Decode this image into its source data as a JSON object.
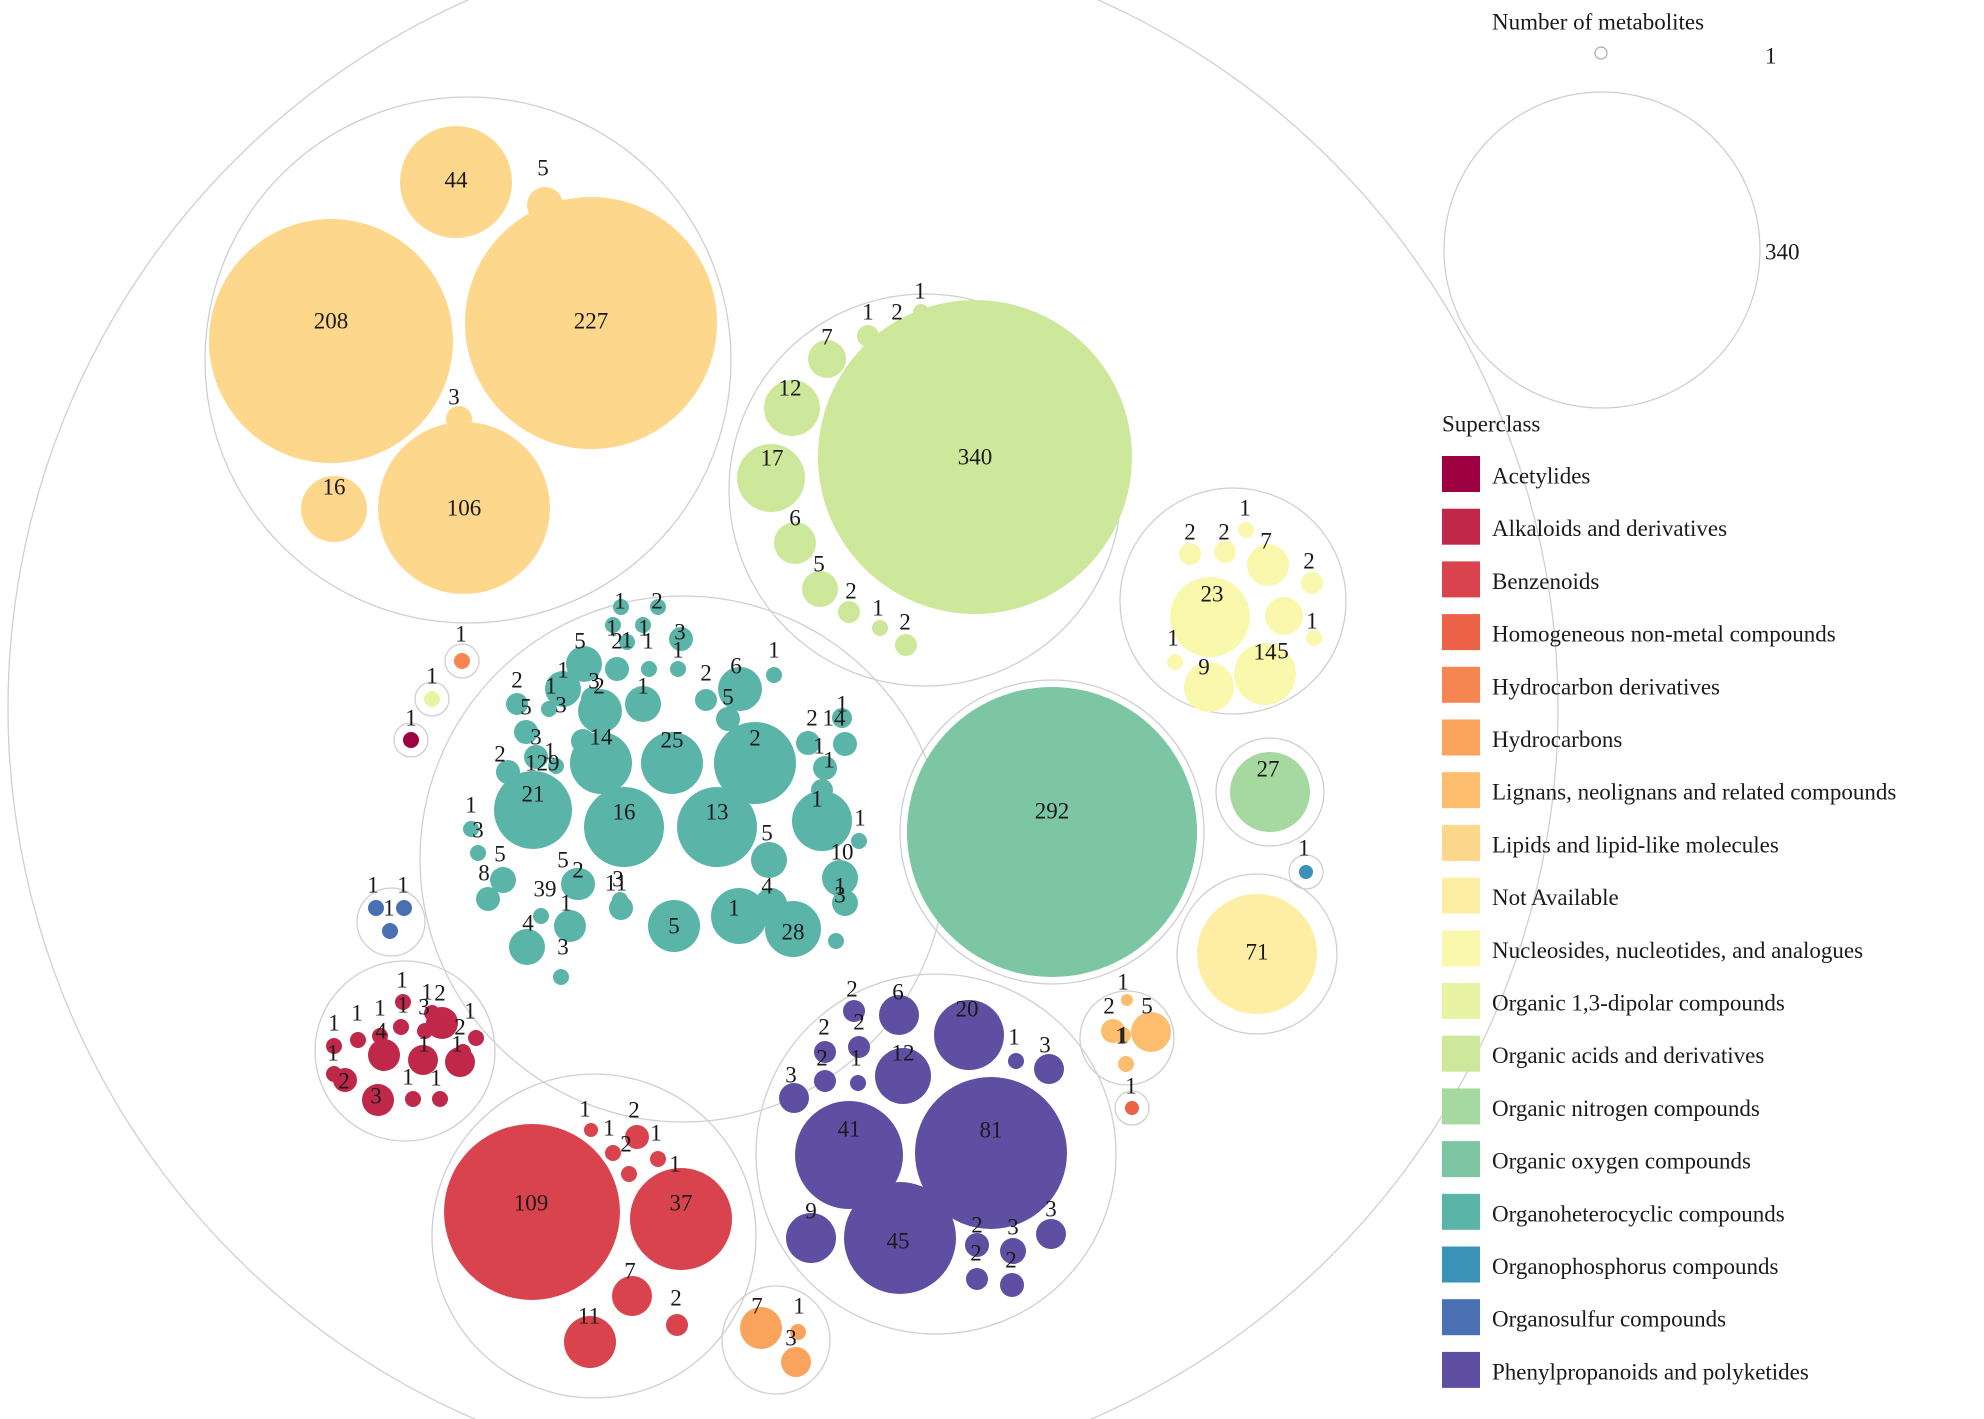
{
  "chart_data": {
    "type": "packed-bubble",
    "title": "",
    "size_legend": {
      "title": "Number of metabolites",
      "min": 1,
      "max": 340
    },
    "color_legend_title": "Superclass",
    "superclasses": [
      {
        "name": "Acetylides",
        "color": "#9e0142"
      },
      {
        "name": "Alkaloids and derivatives",
        "color": "#c0284a"
      },
      {
        "name": "Benzenoids",
        "color": "#d8434d"
      },
      {
        "name": "Homogeneous non-metal compounds",
        "color": "#eb6247"
      },
      {
        "name": "Hydrocarbon derivatives",
        "color": "#f68651"
      },
      {
        "name": "Hydrocarbons",
        "color": "#faa35c"
      },
      {
        "name": "Lignans, neolignans and related compounds",
        "color": "#fdbd6f"
      },
      {
        "name": "Lipids and lipid-like molecules",
        "color": "#fdd78b"
      },
      {
        "name": "Not Available",
        "color": "#fdeea4"
      },
      {
        "name": "Nucleosides, nucleotides, and analogues",
        "color": "#f9f8ad"
      },
      {
        "name": "Organic 1,3-dipolar compounds",
        "color": "#e8f3a4"
      },
      {
        "name": "Organic acids and derivatives",
        "color": "#cde89a"
      },
      {
        "name": "Organic nitrogen compounds",
        "color": "#a6d9a0"
      },
      {
        "name": "Organic oxygen compounds",
        "color": "#7cc6a4"
      },
      {
        "name": "Organoheterocyclic compounds",
        "color": "#5ab4a8"
      },
      {
        "name": "Organophosphorus compounds",
        "color": "#3b92b9"
      },
      {
        "name": "Organosulfur compounds",
        "color": "#4a70b4"
      },
      {
        "name": "Phenylpropanoids and polyketides",
        "color": "#5e4fa2"
      }
    ],
    "groups": [
      {
        "superclass": "Lipids and lipid-like molecules",
        "values": [
          44,
          5,
          208,
          227,
          3,
          16,
          106
        ]
      },
      {
        "superclass": "Organic acids and derivatives",
        "values": [
          1,
          2,
          1,
          7,
          12,
          340,
          17,
          6,
          5,
          2,
          1,
          2
        ]
      },
      {
        "superclass": "Nucleosides, nucleotides, and analogues",
        "values": [
          1,
          2,
          2,
          7,
          2,
          23,
          5,
          1,
          1,
          14,
          9
        ]
      },
      {
        "superclass": "Organic oxygen compounds",
        "values": [
          292
        ]
      },
      {
        "superclass": "Organic nitrogen compounds",
        "values": [
          27
        ]
      },
      {
        "superclass": "Organophosphorus compounds",
        "values": [
          1
        ]
      },
      {
        "superclass": "Not Available",
        "values": [
          71
        ]
      },
      {
        "superclass": "Hydrocarbon derivatives",
        "values": [
          1
        ]
      },
      {
        "superclass": "Organic 1,3-dipolar compounds",
        "values": [
          1
        ]
      },
      {
        "superclass": "Acetylides",
        "values": [
          1
        ]
      },
      {
        "superclass": "Organosulfur compounds",
        "values": [
          1,
          1,
          1
        ]
      },
      {
        "superclass": "Organoheterocyclic compounds",
        "values": [
          1,
          2,
          1,
          1,
          3,
          1,
          5,
          2,
          1,
          1,
          6,
          1,
          1,
          3,
          2,
          1,
          2,
          1,
          5,
          2,
          5,
          3,
          3,
          1,
          1,
          2,
          14,
          14,
          25,
          2,
          2,
          1,
          29,
          21,
          16,
          13,
          1,
          1,
          1,
          1,
          3,
          5,
          5,
          1,
          5,
          3,
          10,
          8,
          2,
          11,
          5,
          1,
          4,
          1,
          39,
          28,
          4,
          1,
          3,
          3
        ]
      },
      {
        "superclass": "Alkaloids and derivatives",
        "values": [
          1,
          1,
          1,
          1,
          3,
          1,
          1,
          1,
          4,
          1,
          2,
          2,
          2,
          1,
          1,
          3,
          1,
          1
        ]
      },
      {
        "superclass": "Lignans, neolignans and related compounds",
        "values": [
          1,
          2,
          5,
          1,
          1
        ]
      },
      {
        "superclass": "Homogeneous non-metal compounds",
        "values": [
          1
        ]
      },
      {
        "superclass": "Benzenoids",
        "values": [
          1,
          1,
          2,
          1,
          2,
          1,
          109,
          37,
          7,
          2,
          11
        ]
      },
      {
        "superclass": "Hydrocarbons",
        "values": [
          7,
          1,
          3
        ]
      },
      {
        "superclass": "Phenylpropanoids and polyketides",
        "values": [
          2,
          6,
          20,
          2,
          2,
          12,
          1,
          3,
          2,
          1,
          3,
          41,
          81,
          9,
          45,
          2,
          3,
          3,
          2,
          2
        ]
      }
    ]
  }
}
